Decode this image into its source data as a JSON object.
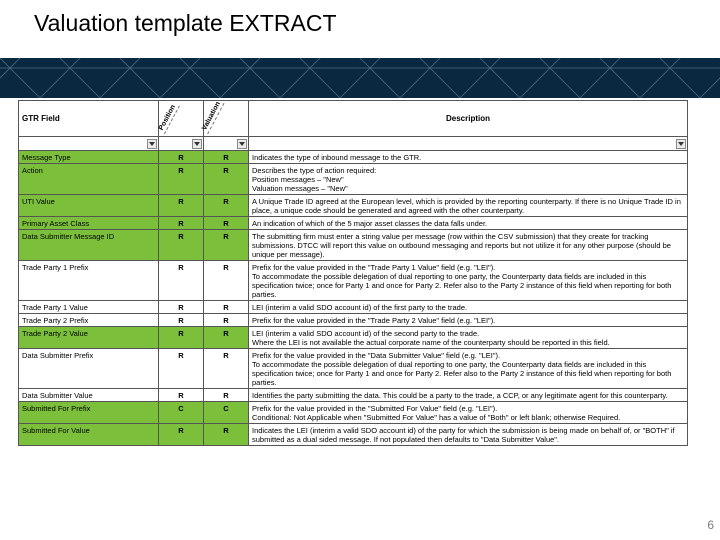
{
  "title": "Valuation template EXTRACT",
  "page_number": "6",
  "banner": {
    "bg": "#0a2840",
    "line_color": "#4a6a80"
  },
  "headers": {
    "field": "GTR Field",
    "col1": "Position",
    "col2": "Valuation",
    "desc": "Description"
  },
  "rows": [
    {
      "shade": "green",
      "field": "Message Type",
      "a": "R",
      "b": "R",
      "desc": "Indicates the type of inbound message to the GTR."
    },
    {
      "shade": "green",
      "field": "Action",
      "a": "R",
      "b": "R",
      "desc": "Describes the type of action required:\nPosition messages – \"New\"\nValuation messages – \"New\""
    },
    {
      "shade": "green",
      "field": "UTI Value",
      "a": "R",
      "b": "R",
      "desc": "A Unique Trade ID agreed at the European level, which is provided by the reporting counterparty. If there is no Unique Trade ID in place, a unique code should be generated and agreed with the other counterparty."
    },
    {
      "shade": "green",
      "field": "Primary Asset Class",
      "a": "R",
      "b": "R",
      "desc": "An indication of which of the 5 major asset classes the data falls under."
    },
    {
      "shade": "green",
      "field": "Data Submitter Message ID",
      "a": "R",
      "b": "R",
      "desc": "The submitting firm must enter a string value per message (row within the CSV submission) that they create for tracking submissions. DTCC will report this value on outbound messaging and reports but not utilize it for any other purpose (should be unique per message)."
    },
    {
      "shade": "white",
      "field": "Trade Party 1 Prefix",
      "a": "R",
      "b": "R",
      "desc": "Prefix for the value provided in the \"Trade Party 1 Value\" field (e.g. \"LEI\").\nTo accommodate the possible delegation of dual reporting to one party, the Counterparty data fields are included in this specification twice; once for Party 1 and once for Party 2. Refer also to the Party 2 instance of this field when reporting for both parties."
    },
    {
      "shade": "white",
      "field": "Trade Party 1 Value",
      "a": "R",
      "b": "R",
      "desc": "LEI (interim a valid SDO account id) of the first party to the trade."
    },
    {
      "shade": "white",
      "field": "Trade Party 2 Prefix",
      "a": "R",
      "b": "R",
      "desc": "Prefix for the value provided in the \"Trade Party 2 Value\" field (e.g. \"LEI\")."
    },
    {
      "shade": "green",
      "field": "Trade Party 2 Value",
      "a": "R",
      "b": "R",
      "desc": "LEI (interim a valid SDO account id) of the second party to the trade.\nWhere the LEI is not available the actual corporate name of the counterparty should be reported in this field."
    },
    {
      "shade": "white",
      "field": "Data Submitter Prefix",
      "a": "R",
      "b": "R",
      "desc": "Prefix for the value provided in the \"Data Submitter Value\" field (e.g. \"LEI\").\nTo accommodate the possible delegation of dual reporting to one party, the Counterparty data fields are included in this specification twice; once for Party 1 and once for Party 2. Refer also to the Party 2 instance of this field when reporting for both parties."
    },
    {
      "shade": "white",
      "field": "Data Submitter Value",
      "a": "R",
      "b": "R",
      "desc": "Identifies the party submitting the data. This could be a party to the trade, a CCP, or any legitimate agent for this counterparty."
    },
    {
      "shade": "green",
      "field": "Submitted For Prefix",
      "a": "C",
      "b": "C",
      "desc": "Prefix for the value provided in the \"Submitted For Value\" field (e.g. \"LEI\").\nConditional: Not Applicable when \"Submitted For Value\" has a value of \"Both\" or left blank; otherwise Required."
    },
    {
      "shade": "green",
      "field": "Submitted For Value",
      "a": "R",
      "b": "R",
      "desc": "Indicates the LEI (interim a valid SDO account id) of the party for which the submission is being made on behalf of, or \"BOTH\" if submitted as a dual sided message. If not populated then defaults to \"Data Submitter Value\"."
    }
  ]
}
